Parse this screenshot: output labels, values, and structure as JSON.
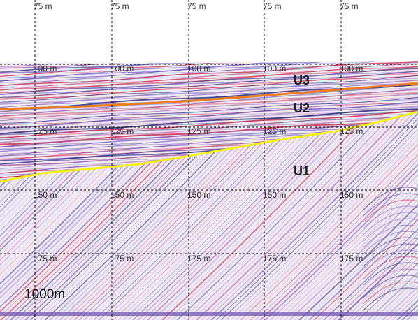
{
  "grid_labels": [
    [
      "75 m",
      "75 m",
      "75 m",
      "75 m",
      "75 m"
    ],
    [
      "100 m",
      "100 m",
      "100 m",
      "100 m",
      "100 m"
    ],
    [
      "125 m",
      "125 m",
      "125 m",
      "125 m",
      "125 m"
    ],
    [
      "150 m",
      "150 m",
      "150 m",
      "150 m",
      "150 m"
    ],
    [
      "175 m",
      "175 m",
      "175 m",
      "175 m",
      "175 m"
    ]
  ],
  "units": [
    "U3",
    "U2",
    "U1"
  ],
  "scale_bar": "1000m"
}
